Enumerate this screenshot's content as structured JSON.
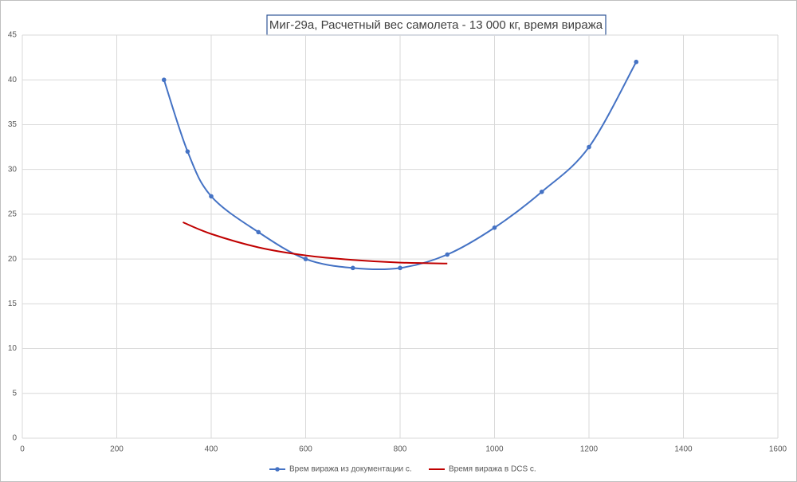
{
  "chart_data": {
    "type": "line",
    "title": "Миг-29а, Расчетный вес самолета - 13 000 кг, время виража",
    "xlim": [
      0,
      1600
    ],
    "xticks": [
      0,
      200,
      400,
      600,
      800,
      1000,
      1200,
      1400,
      1600
    ],
    "ylim": [
      0,
      45
    ],
    "yticks": [
      0,
      5,
      10,
      15,
      20,
      25,
      30,
      35,
      40,
      45
    ],
    "grid": true,
    "legend": "bottom",
    "smooth": true,
    "series": [
      {
        "name": "Врем виража из документации с.",
        "color": "#4472c4",
        "markers": true,
        "x": [
          300,
          350,
          400,
          500,
          600,
          700,
          800,
          900,
          1000,
          1100,
          1200,
          1300
        ],
        "values": [
          40,
          32,
          27,
          23,
          20,
          19,
          19,
          20.5,
          23.5,
          27.5,
          32.5,
          42
        ]
      },
      {
        "name": "Время виража в DCS с.",
        "color": "#c00000",
        "markers": false,
        "x": [
          340,
          400,
          500,
          600,
          700,
          800,
          900
        ],
        "values": [
          24.1,
          22.8,
          21.3,
          20.4,
          19.9,
          19.6,
          19.5
        ]
      }
    ]
  }
}
